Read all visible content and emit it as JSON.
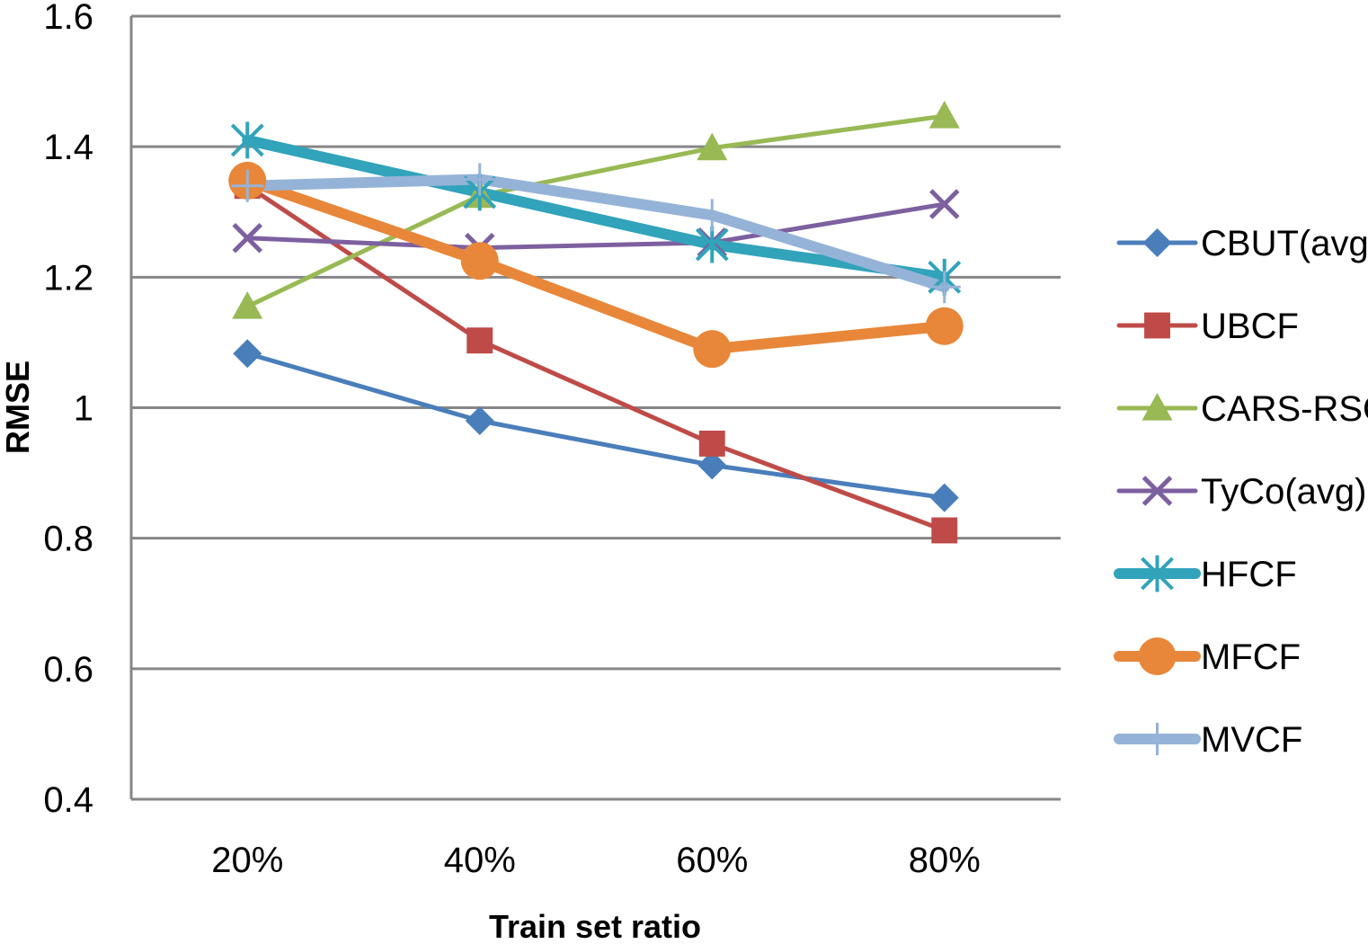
{
  "chart_data": {
    "type": "line",
    "xlabel": "Train set ratio",
    "ylabel": "RMSE",
    "categories": [
      "20%",
      "40%",
      "60%",
      "80%"
    ],
    "ylim": [
      0.4,
      1.6
    ],
    "yticks": [
      "0.4",
      "0.6",
      "0.8",
      "1",
      "1.2",
      "1.4",
      "1.6"
    ],
    "grid": "horizontal",
    "legend_position": "right",
    "series": [
      {
        "name": "CBUT(avg)",
        "values": [
          1.083,
          0.98,
          0.912,
          0.862
        ],
        "color": "#4a7ebb",
        "marker": "diamond",
        "width": "thin"
      },
      {
        "name": "UBCF",
        "values": [
          1.34,
          1.103,
          0.945,
          0.812
        ],
        "color": "#be4b48",
        "marker": "square",
        "width": "thin"
      },
      {
        "name": "CARS-RSCF",
        "values": [
          1.155,
          1.325,
          1.398,
          1.447
        ],
        "color": "#98b954",
        "marker": "triangle",
        "width": "thin"
      },
      {
        "name": "TyCo(avg)",
        "values": [
          1.26,
          1.245,
          1.253,
          1.312
        ],
        "color": "#7d60a0",
        "marker": "x",
        "width": "thin"
      },
      {
        "name": "HFCF",
        "values": [
          1.41,
          1.33,
          1.25,
          1.2
        ],
        "color": "#31a3bb",
        "marker": "asterisk",
        "width": "thick"
      },
      {
        "name": "MFCF",
        "values": [
          1.348,
          1.225,
          1.09,
          1.125
        ],
        "color": "#e8873a",
        "marker": "circle",
        "width": "thick"
      },
      {
        "name": "MVCF",
        "values": [
          1.34,
          1.35,
          1.295,
          1.185
        ],
        "color": "#95b3d7",
        "marker": "plus",
        "width": "thick"
      }
    ]
  }
}
